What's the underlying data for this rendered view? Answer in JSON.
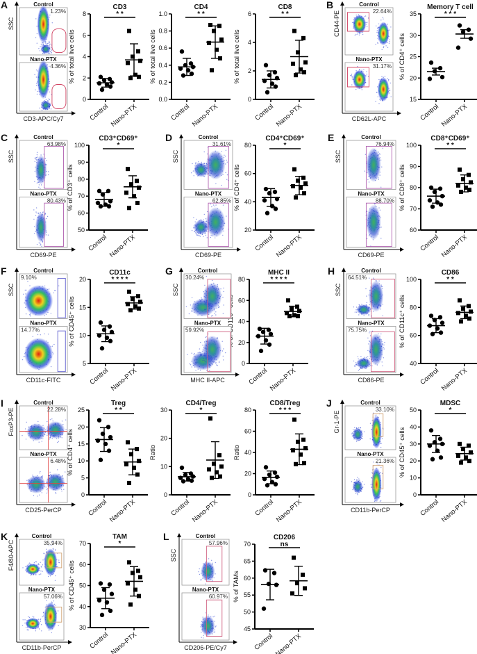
{
  "flow_panels": [
    {
      "letter": "A",
      "y_axis": "SSC",
      "x_axis": "CD3-APC/Cy7",
      "groups": [
        {
          "name": "Control",
          "percent": "1.23%"
        },
        {
          "name": "Nano-PTX",
          "percent": "4.36%"
        }
      ]
    },
    {
      "letter": "B",
      "y_axis": "CD44-PE",
      "x_axis": "CD62L-APC",
      "groups": [
        {
          "name": "Control",
          "percent": "22.64%"
        },
        {
          "name": "Nano-PTX",
          "percent": "31.17%"
        }
      ]
    },
    {
      "letter": "C",
      "y_axis": "SSC",
      "x_axis": "CD69-PE",
      "groups": [
        {
          "name": "Control",
          "percent": "63.98%"
        },
        {
          "name": "Nano-PTX",
          "percent": "80.43%"
        }
      ]
    },
    {
      "letter": "D",
      "y_axis": "SSC",
      "x_axis": "CD69-PE",
      "groups": [
        {
          "name": "Control",
          "percent": "31.61%"
        },
        {
          "name": "Nano-PTX",
          "percent": "62.85%"
        }
      ]
    },
    {
      "letter": "E",
      "y_axis": "SSC",
      "x_axis": "CD69-PE",
      "groups": [
        {
          "name": "Control",
          "percent": "76.94%"
        },
        {
          "name": "Nano-PTX",
          "percent": "88.70%"
        }
      ]
    },
    {
      "letter": "F",
      "y_axis": "SSC",
      "x_axis": "CD11c-FITC",
      "groups": [
        {
          "name": "Control",
          "percent": "9.10%"
        },
        {
          "name": "Nano-PTX",
          "percent": "14.77%"
        }
      ]
    },
    {
      "letter": "G",
      "y_axis": "SSC",
      "x_axis": "MHC II-APC",
      "groups": [
        {
          "name": "Control",
          "percent": "30.24%"
        },
        {
          "name": "Nano-PTX",
          "percent": "59.92%"
        }
      ]
    },
    {
      "letter": "H",
      "y_axis": "SSC",
      "x_axis": "CD86-PE",
      "groups": [
        {
          "name": "Control",
          "percent": "64.51%"
        },
        {
          "name": "Nano-PTX",
          "percent": "75.75%"
        }
      ]
    },
    {
      "letter": "I",
      "y_axis": "FoxP3-PE",
      "x_axis": "CD25-PerCP",
      "groups": [
        {
          "name": "Control",
          "percent": "22.28%"
        },
        {
          "name": "Nano-PTX",
          "percent": "6.48%"
        }
      ]
    },
    {
      "letter": "J",
      "y_axis": "Gr-1-PE",
      "x_axis": "CD11b-PerCP",
      "groups": [
        {
          "name": "Control",
          "percent": "33.10%"
        },
        {
          "name": "Nano-PTX",
          "percent": "21.36%"
        }
      ]
    },
    {
      "letter": "K",
      "y_axis": "F4/80-APC",
      "x_axis": "CD11b-PerCP",
      "groups": [
        {
          "name": "Control",
          "percent": "35.94%"
        },
        {
          "name": "Nano-PTX",
          "percent": "57.06%"
        }
      ]
    },
    {
      "letter": "L",
      "y_axis": "SSC",
      "x_axis": "CD206-PE/Cy7",
      "groups": [
        {
          "name": "Control",
          "percent": "57.96%"
        },
        {
          "name": "Nano-PTX",
          "percent": "60.97%"
        }
      ]
    }
  ],
  "chart_data": [
    {
      "type": "scatter",
      "title": "CD3",
      "ylabel": "% of total live cells",
      "ylim": [
        0,
        8
      ],
      "yticks": [
        0,
        2,
        4,
        6,
        8
      ],
      "tick_labels": [
        "0",
        "2",
        "4",
        "6",
        "8"
      ],
      "categories": [
        "Control",
        "Nano-PTX"
      ],
      "significance": "* *",
      "series": [
        {
          "name": "Control",
          "marker": "circle",
          "values": [
            2.1,
            1.9,
            1.8,
            1.6,
            1.5,
            1.4,
            1.2,
            0.9
          ],
          "mean": 1.55,
          "sd": 0.4
        },
        {
          "name": "Nano-PTX",
          "marker": "square",
          "values": [
            6.4,
            4.5,
            4.0,
            3.6,
            3.4,
            2.3,
            2.1,
            2.0
          ],
          "mean": 3.7,
          "sd": 1.5
        }
      ]
    },
    {
      "type": "scatter",
      "title": "CD4",
      "ylabel": "% of total live cells",
      "ylim": [
        0,
        1
      ],
      "yticks": [
        0,
        0.2,
        0.4,
        0.6,
        0.8,
        1.0
      ],
      "tick_labels": [
        "0.0",
        "0.2",
        "0.4",
        "0.6",
        "0.8",
        "1.0"
      ],
      "categories": [
        "Control",
        "Nano-PTX"
      ],
      "significance": "* *",
      "series": [
        {
          "name": "Control",
          "marker": "circle",
          "values": [
            0.56,
            0.42,
            0.4,
            0.38,
            0.36,
            0.34,
            0.3,
            0.28
          ],
          "mean": 0.38,
          "sd": 0.1
        },
        {
          "name": "Nano-PTX",
          "marker": "square",
          "values": [
            0.87,
            0.86,
            0.8,
            0.7,
            0.66,
            0.58,
            0.48,
            0.34
          ],
          "mean": 0.67,
          "sd": 0.19
        }
      ]
    },
    {
      "type": "scatter",
      "title": "CD8",
      "ylabel": "% of total live cells",
      "ylim": [
        0,
        6
      ],
      "yticks": [
        0,
        2,
        4,
        6
      ],
      "tick_labels": [
        "0",
        "2",
        "4",
        "6"
      ],
      "categories": [
        "Control",
        "Nano-PTX"
      ],
      "significance": "* *",
      "series": [
        {
          "name": "Control",
          "marker": "circle",
          "values": [
            2.4,
            1.9,
            1.7,
            1.5,
            1.3,
            1.1,
            0.9,
            0.5
          ],
          "mean": 1.4,
          "sd": 0.6
        },
        {
          "name": "Nano-PTX",
          "marker": "square",
          "values": [
            4.8,
            4.3,
            3.3,
            2.6,
            2.5,
            2.1,
            1.9,
            1.7
          ],
          "mean": 3.0,
          "sd": 1.15
        }
      ]
    },
    {
      "type": "scatter",
      "title": "Memory T cell",
      "ylabel": "% of CD4⁺ cells",
      "ylim": [
        15,
        35
      ],
      "yticks": [
        15,
        20,
        25,
        30,
        35
      ],
      "tick_labels": [
        "15",
        "20",
        "25",
        "30",
        "35"
      ],
      "categories": [
        "Control",
        "Nano-PTX"
      ],
      "significance": "* * *",
      "series": [
        {
          "name": "Control",
          "marker": "circle",
          "values": [
            23.6,
            22.3,
            21.6,
            20.2,
            19.8
          ],
          "mean": 21.5,
          "sd": 0.8
        },
        {
          "name": "Nano-PTX",
          "marker": "circle",
          "values": [
            32.3,
            31.3,
            30.8,
            29.2,
            27.1
          ],
          "mean": 30.3,
          "sd": 1.0
        }
      ]
    },
    {
      "type": "scatter",
      "title": "CD3⁺CD69⁺",
      "ylabel": "% of CD3⁺ cells",
      "ylim": [
        50,
        100
      ],
      "yticks": [
        50,
        60,
        70,
        80,
        90,
        100
      ],
      "tick_labels": [
        "50",
        "60",
        "70",
        "80",
        "90",
        "100"
      ],
      "categories": [
        "Control",
        "Nano-PTX"
      ],
      "significance": "*",
      "series": [
        {
          "name": "Control",
          "marker": "circle",
          "values": [
            73,
            73,
            71,
            67,
            66,
            65,
            64,
            64
          ],
          "mean": 68,
          "sd": 4
        },
        {
          "name": "Nano-PTX",
          "marker": "square",
          "values": [
            86,
            79,
            77,
            75,
            72,
            70,
            66,
            63
          ],
          "mean": 75.5,
          "sd": 6.5
        }
      ]
    },
    {
      "type": "scatter",
      "title": "CD4⁺CD69⁺",
      "ylabel": "% of CD4⁺ cells",
      "ylim": [
        20,
        80
      ],
      "yticks": [
        20,
        40,
        60,
        80
      ],
      "tick_labels": [
        "20",
        "40",
        "60",
        "80"
      ],
      "categories": [
        "Control",
        "Nano-PTX"
      ],
      "significance": "*",
      "series": [
        {
          "name": "Control",
          "marker": "circle",
          "values": [
            49,
            47,
            46,
            42,
            41,
            37,
            35,
            32
          ],
          "mean": 43,
          "sd": 6.3
        },
        {
          "name": "Nano-PTX",
          "marker": "square",
          "values": [
            63,
            57,
            55,
            53,
            51,
            50,
            46,
            43
          ],
          "mean": 51.5,
          "sd": 6.5
        }
      ]
    },
    {
      "type": "scatter",
      "title": "CD8⁺CD69⁺",
      "ylabel": "% of CD8⁺ cells",
      "ylim": [
        60,
        100
      ],
      "yticks": [
        60,
        70,
        80,
        90,
        100
      ],
      "tick_labels": [
        "60",
        "70",
        "80",
        "90",
        "100"
      ],
      "categories": [
        "Control",
        "Nano-PTX"
      ],
      "significance": "* *",
      "series": [
        {
          "name": "Control",
          "marker": "circle",
          "values": [
            80,
            79.5,
            78,
            76,
            74,
            73,
            72,
            71
          ],
          "mean": 76,
          "sd": 3.3
        },
        {
          "name": "Nano-PTX",
          "marker": "square",
          "values": [
            88.5,
            86,
            84,
            82.5,
            81,
            80,
            79,
            78
          ],
          "mean": 82,
          "sd": 4
        }
      ]
    },
    {
      "type": "scatter",
      "title": "CD11c",
      "ylabel": "% of CD45⁺ cells",
      "ylim": [
        5,
        20
      ],
      "yticks": [
        5,
        10,
        15,
        20
      ],
      "tick_labels": [
        "5",
        "10",
        "15",
        "20"
      ],
      "categories": [
        "Control",
        "Nano-PTX"
      ],
      "significance": "* * * *",
      "series": [
        {
          "name": "Control",
          "marker": "circle",
          "values": [
            12.3,
            11.6,
            11,
            10.6,
            10,
            9.6,
            9,
            7.7
          ],
          "mean": 10.3,
          "sd": 1.4
        },
        {
          "name": "Nano-PTX",
          "marker": "square",
          "values": [
            17.8,
            17,
            16.5,
            16,
            15.6,
            15.2,
            14.8,
            14.5
          ],
          "mean": 15.8,
          "sd": 1.1
        }
      ]
    },
    {
      "type": "scatter",
      "title": "MHC II",
      "ylabel": "% of CD11c⁺ cells",
      "ylim": [
        0,
        80
      ],
      "yticks": [
        0,
        20,
        40,
        60,
        80
      ],
      "tick_labels": [
        "0",
        "20",
        "40",
        "60",
        "80"
      ],
      "categories": [
        "Control",
        "Nano-PTX"
      ],
      "significance": "* * * *",
      "series": [
        {
          "name": "Control",
          "marker": "circle",
          "values": [
            33,
            32,
            30,
            28,
            26,
            22,
            18,
            12
          ],
          "mean": 26,
          "sd": 7.5
        },
        {
          "name": "Nano-PTX",
          "marker": "square",
          "values": [
            60,
            54,
            52,
            50,
            48,
            46,
            45,
            45
          ],
          "mean": 49.5,
          "sd": 5
        }
      ]
    },
    {
      "type": "scatter",
      "title": "CD86",
      "ylabel": "% of CD11c⁺ cells",
      "ylim": [
        40,
        100
      ],
      "yticks": [
        40,
        60,
        80,
        100
      ],
      "tick_labels": [
        "40",
        "60",
        "80",
        "100"
      ],
      "categories": [
        "Control",
        "Nano-PTX"
      ],
      "significance": "* *",
      "series": [
        {
          "name": "Control",
          "marker": "circle",
          "values": [
            74,
            73,
            71,
            69,
            67,
            65,
            62,
            61
          ],
          "mean": 67,
          "sd": 5
        },
        {
          "name": "Nano-PTX",
          "marker": "square",
          "values": [
            85,
            81,
            79,
            77,
            76,
            74,
            72,
            70
          ],
          "mean": 76.5,
          "sd": 4.5
        }
      ]
    },
    {
      "type": "scatter",
      "title": "Treg",
      "ylabel": "% of CD4⁺ cells",
      "ylim": [
        0,
        25
      ],
      "yticks": [
        0,
        5,
        10,
        15,
        20,
        25
      ],
      "tick_labels": [
        "0",
        "5",
        "10",
        "15",
        "20",
        "25"
      ],
      "categories": [
        "Control",
        "Nano-PTX"
      ],
      "significance": "* *",
      "series": [
        {
          "name": "Control",
          "marker": "circle",
          "values": [
            22,
            20,
            18,
            17,
            16,
            15,
            13,
            10.3
          ],
          "mean": 16.3,
          "sd": 3.5
        },
        {
          "name": "Nano-PTX",
          "marker": "square",
          "values": [
            15.5,
            13.5,
            12,
            10,
            9,
            8,
            6,
            3.5
          ],
          "mean": 9.7,
          "sd": 3.8
        }
      ]
    },
    {
      "type": "scatter",
      "title": "CD4/Treg",
      "ylabel": "Ratio",
      "ylim": [
        0,
        30
      ],
      "yticks": [
        0,
        10,
        20,
        30
      ],
      "tick_labels": [
        "0",
        "10",
        "20",
        "30"
      ],
      "categories": [
        "Control",
        "Nano-PTX"
      ],
      "significance": "*",
      "series": [
        {
          "name": "Control",
          "marker": "circle",
          "values": [
            9.6,
            7.5,
            7,
            6.5,
            6,
            5.5,
            5,
            4.8
          ],
          "mean": 6.4,
          "sd": 1.5
        },
        {
          "name": "Nano-PTX",
          "marker": "square",
          "values": [
            27,
            14,
            11,
            10,
            9,
            8,
            6.5,
            6
          ],
          "mean": 12.3,
          "sd": 6.5
        }
      ]
    },
    {
      "type": "scatter",
      "title": "CD8/Treg",
      "ylabel": "Ratio",
      "ylim": [
        0,
        80
      ],
      "yticks": [
        0,
        20,
        40,
        60,
        80
      ],
      "tick_labels": [
        "0",
        "20",
        "40",
        "60",
        "80"
      ],
      "categories": [
        "Control",
        "Nano-PTX"
      ],
      "significance": "* * *",
      "series": [
        {
          "name": "Control",
          "marker": "circle",
          "values": [
            26,
            21,
            19,
            17,
            15,
            12,
            10,
            9
          ],
          "mean": 16.5,
          "sd": 6
        },
        {
          "name": "Nano-PTX",
          "marker": "square",
          "values": [
            71,
            52,
            50,
            44,
            42,
            38,
            30,
            29
          ],
          "mean": 43,
          "sd": 14.5
        }
      ]
    },
    {
      "type": "scatter",
      "title": "MDSC",
      "ylabel": "% of CD45⁺ cells",
      "ylim": [
        0,
        50
      ],
      "yticks": [
        0,
        10,
        20,
        30,
        40,
        50
      ],
      "tick_labels": [
        "0",
        "10",
        "20",
        "30",
        "40",
        "50"
      ],
      "categories": [
        "Control",
        "Nano-PTX"
      ],
      "significance": "*",
      "series": [
        {
          "name": "Control",
          "marker": "circle",
          "values": [
            38,
            33,
            31,
            30,
            29,
            26,
            22,
            21
          ],
          "mean": 30,
          "sd": 5
        },
        {
          "name": "Nano-PTX",
          "marker": "square",
          "values": [
            30,
            29,
            27,
            25,
            23,
            22,
            20,
            19
          ],
          "mean": 24.3,
          "sd": 3.8
        }
      ]
    },
    {
      "type": "scatter",
      "title": "TAM",
      "ylabel": "% of CD45⁺ cells",
      "ylim": [
        30,
        70
      ],
      "yticks": [
        30,
        40,
        50,
        60,
        70
      ],
      "tick_labels": [
        "30",
        "40",
        "50",
        "60",
        "70"
      ],
      "categories": [
        "Control",
        "Nano-PTX"
      ],
      "significance": "*",
      "series": [
        {
          "name": "Control",
          "marker": "circle",
          "values": [
            51,
            50.5,
            48,
            46,
            43,
            42,
            38,
            36
          ],
          "mean": 44,
          "sd": 5
        },
        {
          "name": "Nano-PTX",
          "marker": "square",
          "values": [
            61,
            57,
            56,
            54,
            51,
            48,
            45,
            41
          ],
          "mean": 52,
          "sd": 7
        }
      ]
    },
    {
      "type": "scatter",
      "title": "CD206",
      "ylabel": "% of TAMs",
      "ylim": [
        45,
        70
      ],
      "yticks": [
        45,
        50,
        55,
        60,
        65,
        70
      ],
      "tick_labels": [
        "45",
        "50",
        "55",
        "60",
        "65",
        "70"
      ],
      "categories": [
        "Control",
        "Nano-PTX"
      ],
      "significance": "ns",
      "series": [
        {
          "name": "Control",
          "marker": "circle",
          "values": [
            62.3,
            61.5,
            58.3,
            58,
            51
          ],
          "mean": 58.1,
          "sd": 4.5
        },
        {
          "name": "Nano-PTX",
          "marker": "square",
          "values": [
            66,
            61,
            58.5,
            57,
            55.5
          ],
          "mean": 59.2,
          "sd": 4.3
        }
      ]
    }
  ]
}
